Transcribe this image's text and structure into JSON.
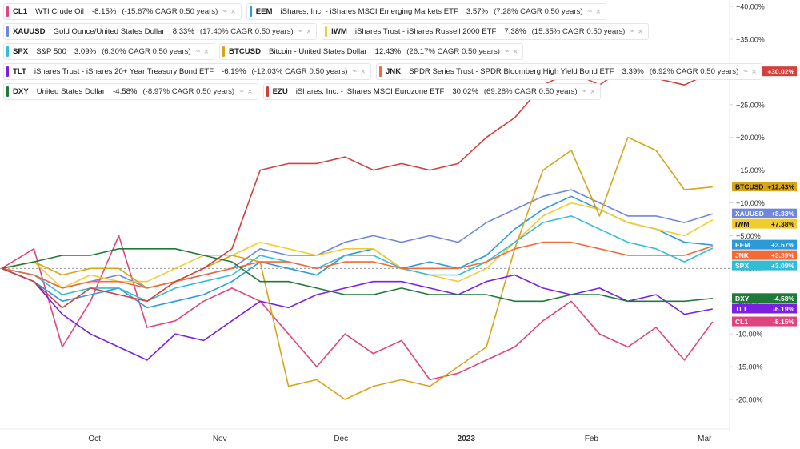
{
  "legend": [
    {
      "symbol": "CL1",
      "name": "WTI Crude Oil",
      "change": "-8.15%",
      "cagr": "(-15.67% CAGR 0.50 years)",
      "color": "#e0447e"
    },
    {
      "symbol": "EEM",
      "name": "iShares, Inc. - iShares MSCI Emerging Markets ETF",
      "change": "3.57%",
      "cagr": "(7.28% CAGR 0.50 years)",
      "color": "#2a9bd8"
    },
    {
      "symbol": "XAUUSD",
      "name": "Gold Ounce/United States Dollar",
      "change": "8.33%",
      "cagr": "(17.40% CAGR 0.50 years)",
      "color": "#6e86dc"
    },
    {
      "symbol": "IWM",
      "name": "iShares Trust - iShares Russell 2000 ETF",
      "change": "7.38%",
      "cagr": "(15.35% CAGR 0.50 years)",
      "color": "#f2cc2e"
    },
    {
      "symbol": "SPX",
      "name": "S&P 500",
      "change": "3.09%",
      "cagr": "(6.30% CAGR 0.50 years)",
      "color": "#33bcd6"
    },
    {
      "symbol": "BTCUSD",
      "name": "Bitcoin - United States Dollar",
      "change": "12.43%",
      "cagr": "(26.17% CAGR 0.50 years)",
      "color": "#d6a51a"
    },
    {
      "symbol": "TLT",
      "name": "iShares Trust - iShares 20+ Year Treasury Bond ETF",
      "change": "-6.19%",
      "cagr": "(-12.03% CAGR 0.50 years)",
      "color": "#7b1fe0"
    },
    {
      "symbol": "JNK",
      "name": "SPDR Series Trust - SPDR Bloomberg High Yield Bond ETF",
      "change": "3.39%",
      "cagr": "(6.92% CAGR 0.50 years)",
      "color": "#f06a3a"
    },
    {
      "symbol": "DXY",
      "name": "United States Dollar",
      "change": "-4.58%",
      "cagr": "(-8.97% CAGR 0.50 years)",
      "color": "#1f7a3a"
    },
    {
      "symbol": "EZU",
      "name": "iShares, Inc. - iShares MSCI Eurozone ETF",
      "change": "30.02%",
      "cagr": "(69.28% CAGR 0.50 years)",
      "color": "#d0403c"
    }
  ],
  "legend_rows": [
    [
      0,
      1
    ],
    [
      2,
      3
    ],
    [
      4,
      5
    ],
    [
      6,
      7
    ],
    [
      8,
      9
    ]
  ],
  "legend_icon": "lock-icon",
  "close_icon": "close-icon",
  "chart_data": {
    "type": "line",
    "x_ticks": [
      "Oct",
      "Nov",
      "Dec",
      "2023",
      "Feb",
      "Mar"
    ],
    "y_ticks": [
      "+40.00%",
      "+35.00%",
      "+30.00%",
      "+25.00%",
      "+20.00%",
      "+15.00%",
      "+10.00%",
      "+5.00%",
      "+0.00%",
      "-5.00%",
      "-10.00%",
      "-15.00%",
      "-20.00%"
    ],
    "ylim": [
      -22,
      40
    ],
    "baseline": 0,
    "grid": false,
    "legend_position": "top-left",
    "x_dates": [
      "2022-09-08",
      "2022-09-16",
      "2022-09-23",
      "2022-09-30",
      "2022-10-07",
      "2022-10-14",
      "2022-10-21",
      "2022-10-28",
      "2022-11-04",
      "2022-11-11",
      "2022-11-18",
      "2022-11-25",
      "2022-12-02",
      "2022-12-09",
      "2022-12-16",
      "2022-12-23",
      "2022-12-30",
      "2023-01-06",
      "2023-01-13",
      "2023-01-20",
      "2023-01-27",
      "2023-02-03",
      "2023-02-10",
      "2023-02-17",
      "2023-02-24",
      "2023-03-03"
    ],
    "series": [
      {
        "name": "CL1",
        "color": "#e0447e",
        "label": "-8.15%",
        "values": [
          0,
          3,
          -12,
          -5,
          5,
          -9,
          -8,
          -5,
          -3,
          -5,
          -10,
          -15,
          -10,
          -13,
          -11,
          -17,
          -16,
          -14,
          -12,
          -8,
          -5,
          -10,
          -12,
          -9,
          -14,
          -8.15
        ]
      },
      {
        "name": "EEM",
        "color": "#2a9bd8",
        "label": "+3.57%",
        "values": [
          0,
          -2,
          -5,
          -4,
          -3,
          -6,
          -5,
          -4,
          -2,
          1,
          0,
          -1,
          2,
          3,
          0,
          1,
          0,
          2,
          6,
          9,
          11,
          9,
          7,
          6,
          4,
          3.57
        ]
      },
      {
        "name": "XAUUSD",
        "color": "#6e86dc",
        "label": "+8.33%",
        "values": [
          0,
          -1,
          -3,
          -2,
          -1,
          -3,
          -2,
          -1,
          0,
          3,
          2,
          2,
          4,
          5,
          4,
          5,
          4,
          7,
          9,
          11,
          12,
          10,
          8,
          8,
          7,
          8.33
        ]
      },
      {
        "name": "IWM",
        "color": "#f2cc2e",
        "label": "+7.38%",
        "values": [
          0,
          1,
          -3,
          -1,
          -2,
          -2,
          0,
          2,
          2,
          4,
          3,
          2,
          3,
          3,
          0,
          -1,
          -2,
          0,
          4,
          8,
          10,
          9,
          7,
          6,
          5,
          7.38
        ]
      },
      {
        "name": "SPX",
        "color": "#33bcd6",
        "label": "+3.09%",
        "values": [
          0,
          -1,
          -4,
          -3,
          -3,
          -5,
          -3,
          -2,
          -1,
          2,
          1,
          0,
          2,
          2,
          0,
          -1,
          -1,
          1,
          4,
          7,
          8,
          6,
          4,
          3,
          1,
          3.09
        ]
      },
      {
        "name": "BTCUSD",
        "color": "#d6a51a",
        "label": "+12.43%",
        "values": [
          0,
          1,
          -1,
          0,
          0,
          -3,
          -2,
          0,
          2,
          1,
          -18,
          -17,
          -20,
          -18,
          -17,
          -18,
          -15,
          -12,
          3,
          15,
          18,
          8,
          20,
          18,
          12,
          12.43
        ]
      },
      {
        "name": "TLT",
        "color": "#7b1fe0",
        "label": "-6.19%",
        "values": [
          0,
          -2,
          -7,
          -10,
          -12,
          -14,
          -10,
          -11,
          -8,
          -5,
          -6,
          -4,
          -3,
          -2,
          -2,
          -3,
          -4,
          -2,
          -1,
          -3,
          -4,
          -3,
          -5,
          -4,
          -7,
          -6.19
        ]
      },
      {
        "name": "JNK",
        "color": "#f06a3a",
        "label": "+3.39%",
        "values": [
          0,
          -1,
          -3,
          -2,
          -2,
          -3,
          -2,
          -1,
          0,
          1,
          1,
          0,
          1,
          1,
          0,
          0,
          0,
          1,
          3,
          4,
          4,
          3,
          2,
          2,
          2,
          3.39
        ]
      },
      {
        "name": "DXY",
        "color": "#1f7a3a",
        "label": "-4.58%",
        "values": [
          0,
          1,
          2,
          2,
          3,
          3,
          3,
          2,
          1,
          -2,
          -2,
          -3,
          -4,
          -4,
          -3,
          -4,
          -4,
          -4,
          -5,
          -5,
          -4,
          -4,
          -5,
          -5,
          -5,
          -4.58
        ]
      },
      {
        "name": "EZU",
        "color": "#d0403c",
        "label": "+30.02%",
        "values": [
          0,
          -2,
          -6,
          -3,
          -4,
          -5,
          -2,
          0,
          3,
          15,
          16,
          16,
          17,
          15,
          16,
          15,
          16,
          20,
          23,
          28,
          30,
          28,
          31,
          29,
          28,
          30.02
        ]
      }
    ]
  }
}
